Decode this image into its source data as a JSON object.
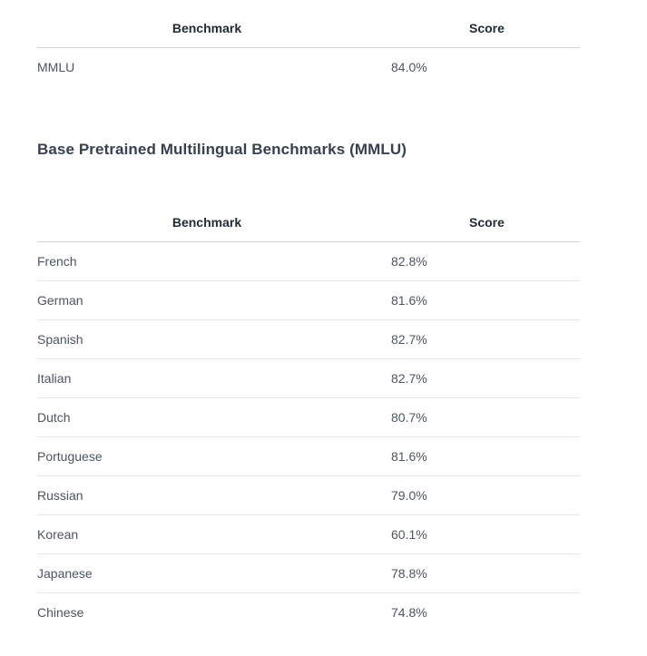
{
  "table1": {
    "headers": {
      "benchmark": "Benchmark",
      "score": "Score"
    },
    "rows": [
      {
        "benchmark": "MMLU",
        "score": "84.0%"
      }
    ]
  },
  "section2": {
    "title": "Base Pretrained Multilingual Benchmarks (MMLU)"
  },
  "table2": {
    "headers": {
      "benchmark": "Benchmark",
      "score": "Score"
    },
    "rows": [
      {
        "benchmark": "French",
        "score": "82.8%"
      },
      {
        "benchmark": "German",
        "score": "81.6%"
      },
      {
        "benchmark": "Spanish",
        "score": "82.7%"
      },
      {
        "benchmark": "Italian",
        "score": "82.7%"
      },
      {
        "benchmark": "Dutch",
        "score": "80.7%"
      },
      {
        "benchmark": "Portuguese",
        "score": "81.6%"
      },
      {
        "benchmark": "Russian",
        "score": "79.0%"
      },
      {
        "benchmark": "Korean",
        "score": "60.1%"
      },
      {
        "benchmark": "Japanese",
        "score": "78.8%"
      },
      {
        "benchmark": "Chinese",
        "score": "74.8%"
      }
    ]
  }
}
